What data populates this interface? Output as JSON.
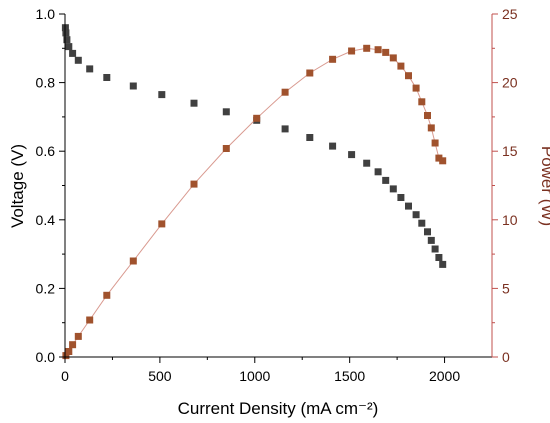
{
  "chart_data": {
    "type": "scatter",
    "xlabel": "Current Density (mA cm⁻²)",
    "ylabel_left": "Voltage (V)",
    "ylabel_right": "Power (W)",
    "xlim": [
      0,
      2250
    ],
    "ylim_left": [
      0,
      1.0
    ],
    "ylim_right": [
      0,
      25
    ],
    "x_ticks": [
      "0",
      "500",
      "1000",
      "1500",
      "2000"
    ],
    "y_left_ticks": [
      "0.0",
      "0.2",
      "0.4",
      "0.6",
      "0.8",
      "1.0"
    ],
    "y_right_ticks": [
      "0",
      "5",
      "10",
      "15",
      "20",
      "25"
    ],
    "grid": false,
    "series": [
      {
        "axis": "left",
        "color": "#404040",
        "marker": "square",
        "line": false,
        "x": [
          2,
          5,
          10,
          20,
          40,
          70,
          130,
          220,
          360,
          510,
          680,
          850,
          1010,
          1160,
          1290,
          1410,
          1510,
          1590,
          1650,
          1690,
          1730,
          1770,
          1810,
          1850,
          1880,
          1910,
          1930,
          1950,
          1970,
          1990
        ],
        "y": [
          0.96,
          0.945,
          0.925,
          0.905,
          0.885,
          0.865,
          0.84,
          0.815,
          0.79,
          0.765,
          0.74,
          0.715,
          0.69,
          0.665,
          0.64,
          0.615,
          0.59,
          0.565,
          0.54,
          0.515,
          0.49,
          0.465,
          0.44,
          0.415,
          0.39,
          0.365,
          0.34,
          0.315,
          0.29,
          0.27
        ]
      },
      {
        "axis": "right",
        "color": "#a0522d",
        "marker": "square",
        "line": true,
        "line_color": "#d99a90",
        "x": [
          5,
          20,
          40,
          70,
          130,
          220,
          360,
          510,
          680,
          850,
          1010,
          1160,
          1290,
          1410,
          1510,
          1590,
          1650,
          1690,
          1730,
          1770,
          1810,
          1850,
          1880,
          1910,
          1930,
          1950,
          1970,
          1990
        ],
        "y": [
          0.1,
          0.4,
          0.9,
          1.5,
          2.7,
          4.5,
          7.0,
          9.7,
          12.6,
          15.2,
          17.4,
          19.3,
          20.7,
          21.7,
          22.3,
          22.5,
          22.4,
          22.2,
          21.8,
          21.2,
          20.5,
          19.6,
          18.6,
          17.6,
          16.7,
          15.6,
          14.5,
          14.3
        ]
      }
    ]
  }
}
